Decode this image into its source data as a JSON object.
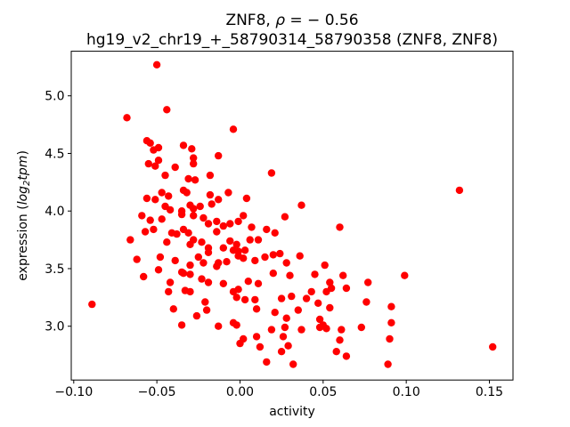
{
  "figure": {
    "title1": {
      "pre": "ZNF8, ",
      "rho": "ρ",
      "post": " = − 0.56"
    },
    "title2": "hg19_v2_chr19_+_58790314_58790358 (ZNF8, ZNF8)",
    "xlabel": "activity",
    "ylabel": {
      "pre": "expression (",
      "log": "log",
      "sub": "2",
      "word": "tpm",
      "post": ")"
    }
  },
  "chart_data": {
    "type": "scatter",
    "title": "ZNF8, ρ = −0.56",
    "subtitle": "hg19_v2_chr19_+_58790314_58790358 (ZNF8, ZNF8)",
    "xlabel": "activity",
    "ylabel": "expression (log2 tpm)",
    "correlation_rho": -0.56,
    "xlim": [
      -0.1015,
      0.1642
    ],
    "ylim": [
      2.533,
      5.387
    ],
    "xticks": [
      -0.1,
      -0.05,
      0.0,
      0.05,
      0.1,
      0.15
    ],
    "xtick_labels": [
      "−0.10",
      "−0.05",
      "0.00",
      "0.05",
      "0.10",
      "0.15"
    ],
    "yticks": [
      3.0,
      3.5,
      4.0,
      4.5,
      5.0
    ],
    "ytick_labels": [
      "3.0",
      "3.5",
      "4.0",
      "4.5",
      "5.0"
    ],
    "grid": false,
    "legend": null,
    "marker": {
      "shape": "circle",
      "color": "#ff0000",
      "radius_px": 4.2
    },
    "points": [
      [
        -0.05,
        5.27
      ],
      [
        -0.044,
        4.88
      ],
      [
        -0.068,
        4.81
      ],
      [
        -0.056,
        4.61
      ],
      [
        -0.054,
        4.59
      ],
      [
        -0.049,
        4.55
      ],
      [
        -0.052,
        4.53
      ],
      [
        -0.034,
        4.57
      ],
      [
        -0.029,
        4.54
      ],
      [
        -0.049,
        4.44
      ],
      [
        -0.028,
        4.46
      ],
      [
        -0.013,
        4.48
      ],
      [
        -0.004,
        4.71
      ],
      [
        0.132,
        4.18
      ],
      [
        -0.055,
        4.41
      ],
      [
        -0.051,
        4.39
      ],
      [
        -0.039,
        4.38
      ],
      [
        -0.028,
        4.41
      ],
      [
        -0.045,
        4.31
      ],
      [
        -0.031,
        4.28
      ],
      [
        -0.027,
        4.27
      ],
      [
        -0.018,
        4.31
      ],
      [
        0.019,
        4.33
      ],
      [
        -0.047,
        4.16
      ],
      [
        -0.043,
        4.13
      ],
      [
        -0.034,
        4.18
      ],
      [
        -0.032,
        4.16
      ],
      [
        -0.018,
        4.14
      ],
      [
        -0.056,
        4.11
      ],
      [
        -0.051,
        4.1
      ],
      [
        -0.007,
        4.16
      ],
      [
        0.004,
        4.11
      ],
      [
        -0.013,
        4.1
      ],
      [
        -0.045,
        4.04
      ],
      [
        -0.042,
        4.01
      ],
      [
        -0.035,
        4.0
      ],
      [
        -0.03,
        4.05
      ],
      [
        -0.028,
        4.02
      ],
      [
        -0.024,
        4.04
      ],
      [
        -0.017,
        4.06
      ],
      [
        0.037,
        4.05
      ],
      [
        -0.059,
        3.96
      ],
      [
        -0.054,
        3.92
      ],
      [
        -0.047,
        3.93
      ],
      [
        -0.035,
        3.97
      ],
      [
        -0.028,
        3.96
      ],
      [
        -0.022,
        3.94
      ],
      [
        -0.019,
        3.89
      ],
      [
        -0.014,
        3.91
      ],
      [
        0.002,
        3.96
      ],
      [
        0.027,
        3.95
      ],
      [
        -0.052,
        3.84
      ],
      [
        -0.057,
        3.82
      ],
      [
        -0.041,
        3.81
      ],
      [
        -0.038,
        3.8
      ],
      [
        -0.034,
        3.84
      ],
      [
        -0.031,
        3.81
      ],
      [
        -0.014,
        3.82
      ],
      [
        -0.066,
        3.75
      ],
      [
        -0.044,
        3.73
      ],
      [
        -0.028,
        3.75
      ],
      [
        -0.03,
        3.71
      ],
      [
        -0.023,
        3.73
      ],
      [
        -0.019,
        3.68
      ],
      [
        -0.01,
        3.87
      ],
      [
        -0.006,
        3.89
      ],
      [
        -0.001,
        3.91
      ],
      [
        0.007,
        3.86
      ],
      [
        0.016,
        3.84
      ],
      [
        0.021,
        3.81
      ],
      [
        0.06,
        3.86
      ],
      [
        0.006,
        3.75
      ],
      [
        0.011,
        3.75
      ],
      [
        -0.006,
        3.74
      ],
      [
        -0.002,
        3.71
      ],
      [
        -0.01,
        3.68
      ],
      [
        -0.004,
        3.66
      ],
      [
        0.003,
        3.66
      ],
      [
        -0.062,
        3.58
      ],
      [
        -0.048,
        3.6
      ],
      [
        -0.039,
        3.57
      ],
      [
        -0.025,
        3.6
      ],
      [
        -0.022,
        3.55
      ],
      [
        -0.049,
        3.49
      ],
      [
        -0.019,
        3.64
      ],
      [
        -0.014,
        3.52
      ],
      [
        -0.035,
        3.47
      ],
      [
        -0.03,
        3.53
      ],
      [
        -0.001,
        3.61
      ],
      [
        0.002,
        3.59
      ],
      [
        0.009,
        3.57
      ],
      [
        0.015,
        3.6
      ],
      [
        0.02,
        3.62
      ],
      [
        0.024,
        3.63
      ],
      [
        0.028,
        3.55
      ],
      [
        0.036,
        3.61
      ],
      [
        0.051,
        3.53
      ],
      [
        -0.008,
        3.56
      ],
      [
        -0.013,
        3.55
      ],
      [
        -0.001,
        3.65
      ],
      [
        -0.058,
        3.43
      ],
      [
        -0.042,
        3.38
      ],
      [
        -0.034,
        3.46
      ],
      [
        -0.03,
        3.45
      ],
      [
        -0.023,
        3.41
      ],
      [
        -0.019,
        3.38
      ],
      [
        -0.043,
        3.3
      ],
      [
        -0.033,
        3.31
      ],
      [
        -0.03,
        3.3
      ],
      [
        -0.089,
        3.19
      ],
      [
        -0.04,
        3.15
      ],
      [
        -0.021,
        3.21
      ],
      [
        -0.02,
        3.14
      ],
      [
        -0.026,
        3.09
      ],
      [
        -0.035,
        3.01
      ],
      [
        -0.01,
        3.37
      ],
      [
        0.005,
        3.39
      ],
      [
        0.011,
        3.37
      ],
      [
        0.02,
        3.46
      ],
      [
        0.03,
        3.44
      ],
      [
        0.045,
        3.45
      ],
      [
        0.054,
        3.38
      ],
      [
        0.055,
        3.33
      ],
      [
        0.062,
        3.44
      ],
      [
        0.064,
        3.33
      ],
      [
        -0.004,
        3.3
      ],
      [
        -0.001,
        3.32
      ],
      [
        -0.002,
        3.25
      ],
      [
        0.003,
        3.23
      ],
      [
        0.009,
        3.23
      ],
      [
        0.01,
        3.15
      ],
      [
        0.025,
        3.24
      ],
      [
        0.031,
        3.26
      ],
      [
        0.04,
        3.24
      ],
      [
        0.043,
        3.3
      ],
      [
        0.047,
        3.2
      ],
      [
        0.052,
        3.3
      ],
      [
        0.054,
        3.16
      ],
      [
        0.021,
        3.12
      ],
      [
        0.028,
        3.07
      ],
      [
        0.035,
        3.14
      ],
      [
        0.099,
        3.44
      ],
      [
        0.077,
        3.38
      ],
      [
        0.076,
        3.21
      ],
      [
        0.091,
        3.17
      ],
      [
        -0.004,
        3.03
      ],
      [
        -0.002,
        3.01
      ],
      [
        -0.013,
        3.0
      ],
      [
        0.048,
        3.06
      ],
      [
        0.05,
        3.01
      ],
      [
        0.061,
        2.97
      ],
      [
        0.073,
        2.99
      ],
      [
        0.091,
        3.03
      ],
      [
        0.002,
        2.89
      ],
      [
        0.0,
        2.85
      ],
      [
        0.01,
        2.91
      ],
      [
        0.012,
        2.82
      ],
      [
        0.019,
        2.97
      ],
      [
        0.026,
        2.91
      ],
      [
        0.027,
        2.99
      ],
      [
        0.029,
        2.83
      ],
      [
        0.037,
        2.97
      ],
      [
        0.06,
        2.88
      ],
      [
        0.09,
        2.89
      ],
      [
        0.025,
        2.78
      ],
      [
        0.016,
        2.69
      ],
      [
        0.032,
        2.67
      ],
      [
        0.058,
        2.78
      ],
      [
        0.064,
        2.74
      ],
      [
        0.048,
        2.99
      ],
      [
        0.052,
        2.98
      ],
      [
        0.152,
        2.82
      ],
      [
        0.089,
        2.67
      ]
    ]
  }
}
